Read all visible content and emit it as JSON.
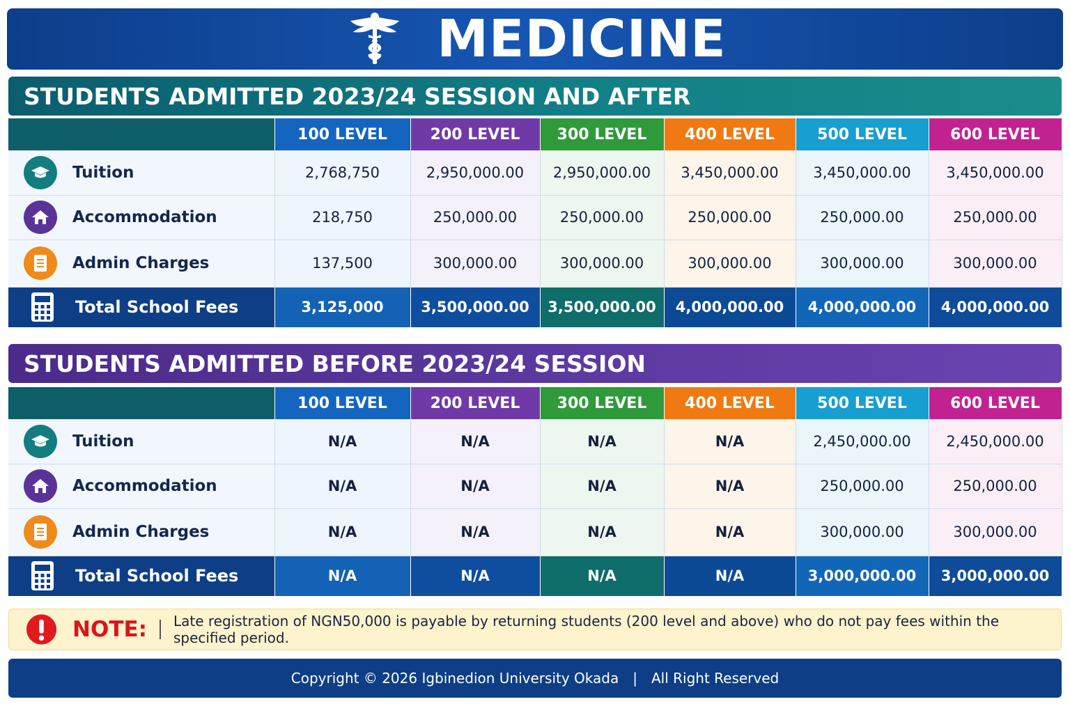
{
  "header": {
    "title": "MEDICINE",
    "icon": "caduceus-icon"
  },
  "levels": [
    "100 LEVEL",
    "200 LEVEL",
    "300 LEVEL",
    "400 LEVEL",
    "500 LEVEL",
    "600 LEVEL"
  ],
  "row_labels": {
    "tuition": "Tuition",
    "accommodation": "Accommodation",
    "admin": "Admin Charges",
    "total": "Total School Fees"
  },
  "section_after": {
    "title": "STUDENTS ADMITTED 2023/24 SESSION AND AFTER",
    "tuition": [
      "2,768,750",
      "2,950,000.00",
      "2,950,000.00",
      "3,450,000.00",
      "3,450,000.00",
      "3,450,000.00"
    ],
    "accommodation": [
      "218,750",
      "250,000.00",
      "250,000.00",
      "250,000.00",
      "250,000.00",
      "250,000.00"
    ],
    "admin": [
      "137,500",
      "300,000.00",
      "300,000.00",
      "300,000.00",
      "300,000.00",
      "300,000.00"
    ],
    "total": [
      "3,125,000",
      "3,500,000.00",
      "3,500,000.00",
      "4,000,000.00",
      "4,000,000.00",
      "4,000,000.00"
    ]
  },
  "section_before": {
    "title": "STUDENTS ADMITTED BEFORE 2023/24 SESSION",
    "tuition": [
      "N/A",
      "N/A",
      "N/A",
      "N/A",
      "2,450,000.00",
      "2,450,000.00"
    ],
    "accommodation": [
      "N/A",
      "N/A",
      "N/A",
      "N/A",
      "250,000.00",
      "250,000.00"
    ],
    "admin": [
      "N/A",
      "N/A",
      "N/A",
      "N/A",
      "300,000.00",
      "300,000.00"
    ],
    "total": [
      "N/A",
      "N/A",
      "N/A",
      "N/A",
      "3,000,000.00",
      "3,000,000.00"
    ]
  },
  "note": {
    "label": "NOTE:",
    "text": "Late registration of NGN50,000 is payable by returning students (200 level and above) who do not pay fees within the specified period."
  },
  "footer": {
    "copyright": "Copyright © 2026 Igbinedion University Okada",
    "separator": "|",
    "rights": "All Right Reserved"
  },
  "colors": {
    "level_100": "#1365c0",
    "level_200": "#6f3aa8",
    "level_300": "#2f9a3a",
    "level_400": "#ef7a12",
    "level_500": "#169fd0",
    "level_600": "#c2228f",
    "navy": "#0e3f86",
    "teal_header": "#127f87",
    "purple_header": "#5c3aa1",
    "note_red": "#d8161b"
  },
  "icons": {
    "tuition": "graduation-cap-icon",
    "accommodation": "house-icon",
    "admin": "document-icon",
    "total": "calculator-icon",
    "note": "exclamation-icon"
  }
}
